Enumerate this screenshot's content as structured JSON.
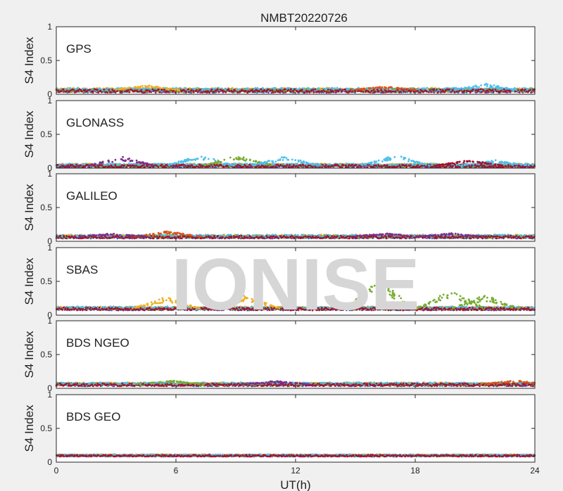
{
  "chart_data": {
    "type": "scatter",
    "title": "NMBT20220726",
    "xlabel": "UT(h)",
    "ylabel": "S4 Index",
    "xlim": [
      0,
      24
    ],
    "ylim": [
      0,
      1
    ],
    "xticks": [
      "0",
      "6",
      "12",
      "18",
      "24"
    ],
    "yticks": [
      "0",
      "0.5",
      "1"
    ],
    "grid": false,
    "watermark": "IONISE",
    "series_colors": [
      "#0072BD",
      "#D95319",
      "#EDB120",
      "#7E2F8E",
      "#77AC30",
      "#4DBEEE",
      "#A2142F"
    ],
    "panels": [
      {
        "name": "GPS",
        "baseline": 0.06,
        "noise": 0.025,
        "bumps": [
          [
            4.5,
            0.14,
            "#EDB120"
          ],
          [
            21.5,
            0.16,
            "#4DBEEE"
          ],
          [
            16.5,
            0.12,
            "#D95319"
          ]
        ]
      },
      {
        "name": "GLONASS",
        "baseline": 0.04,
        "noise": 0.02,
        "bumps": [
          [
            3.3,
            0.17,
            "#7E2F8E"
          ],
          [
            7.2,
            0.2,
            "#4DBEEE"
          ],
          [
            9.1,
            0.2,
            "#77AC30"
          ],
          [
            11.5,
            0.18,
            "#4DBEEE"
          ],
          [
            17.0,
            0.2,
            "#4DBEEE"
          ],
          [
            22.0,
            0.12,
            "#4DBEEE"
          ],
          [
            20.7,
            0.12,
            "#A2142F"
          ]
        ]
      },
      {
        "name": "GALILEO",
        "baseline": 0.07,
        "noise": 0.02,
        "bumps": [
          [
            5.6,
            0.15,
            "#D95319"
          ],
          [
            16.5,
            0.12,
            "#7E2F8E"
          ],
          [
            19.8,
            0.12,
            "#7E2F8E"
          ],
          [
            2.8,
            0.12,
            "#7E2F8E"
          ]
        ]
      },
      {
        "name": "SBAS",
        "baseline": 0.1,
        "noise": 0.02,
        "bumps": [
          [
            5.5,
            0.27,
            "#EDB120"
          ],
          [
            9.5,
            0.3,
            "#EDB120"
          ],
          [
            16.2,
            0.55,
            "#77AC30"
          ],
          [
            19.8,
            0.38,
            "#77AC30"
          ],
          [
            21.5,
            0.3,
            "#77AC30"
          ]
        ]
      },
      {
        "name": "BDS NGEO",
        "baseline": 0.06,
        "noise": 0.02,
        "bumps": [
          [
            5.7,
            0.12,
            "#77AC30"
          ],
          [
            11.0,
            0.11,
            "#7E2F8E"
          ],
          [
            23.0,
            0.12,
            "#D95319"
          ]
        ]
      },
      {
        "name": "BDS GEO",
        "baseline": 0.1,
        "noise": 0.012,
        "bumps": []
      }
    ]
  }
}
